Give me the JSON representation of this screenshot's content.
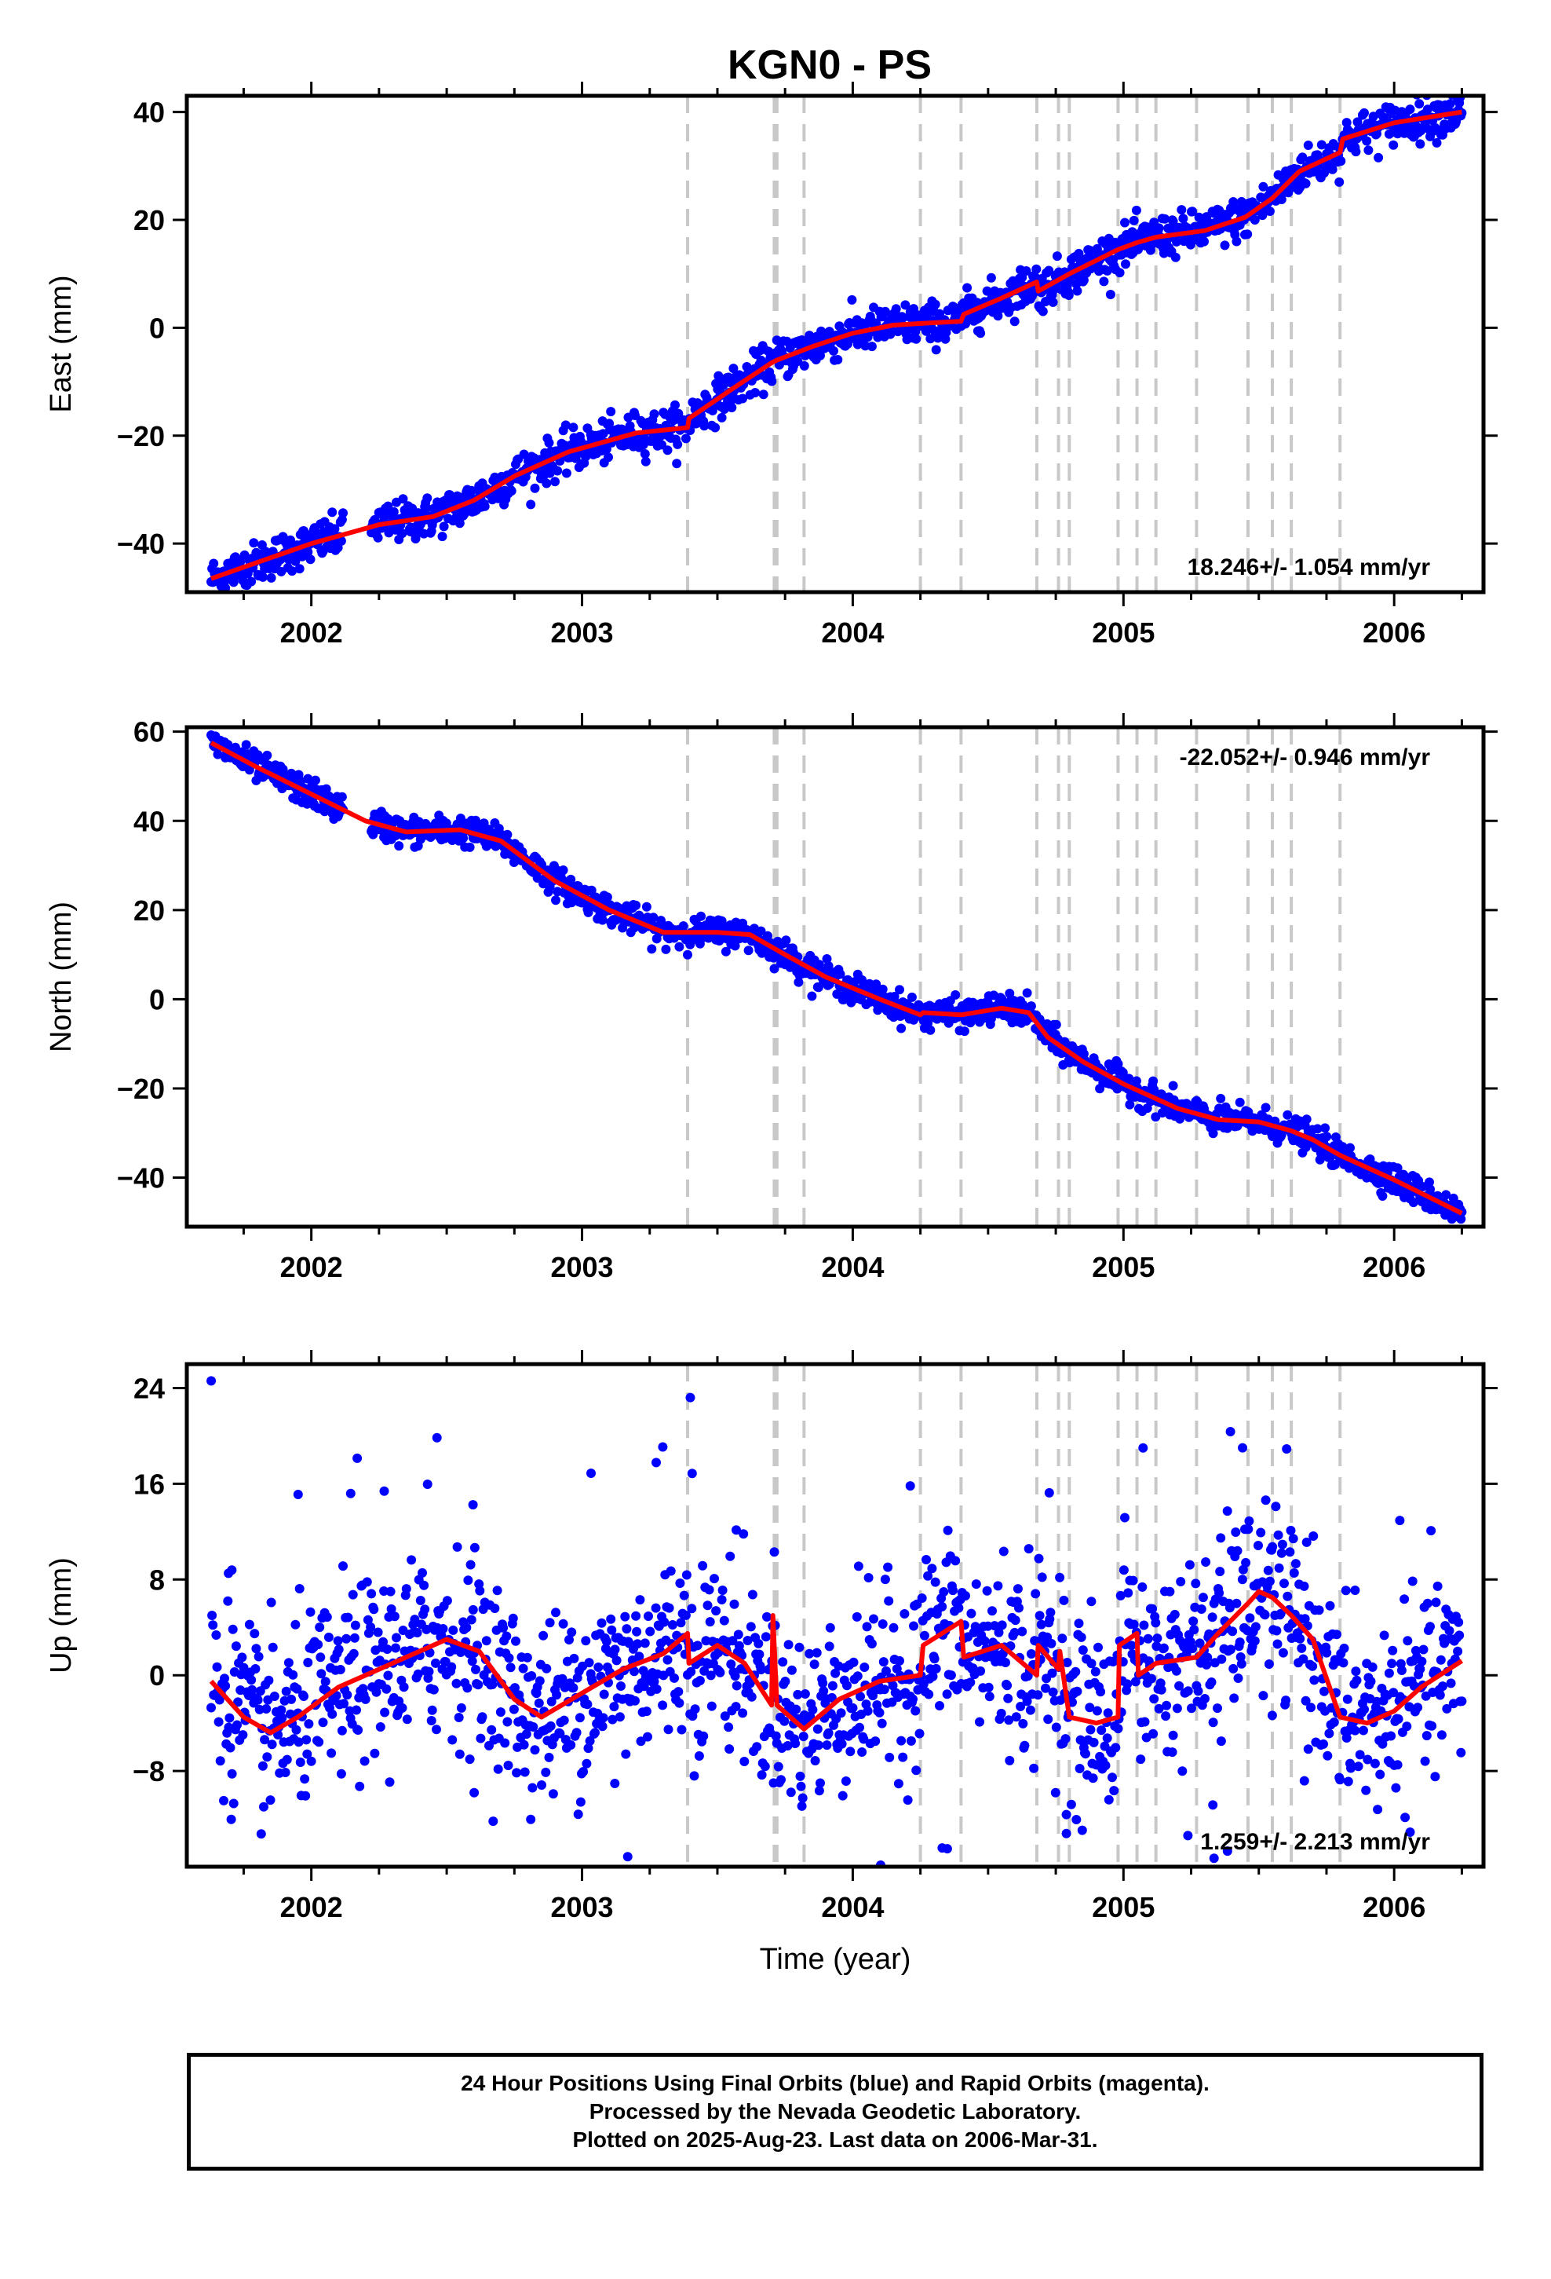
{
  "title": "KGN0 - PS",
  "colors": {
    "points": "#0000ff",
    "fit": "#ff0000",
    "breaks": "#c8c8c8",
    "frame": "#000000"
  },
  "chart_data": [
    {
      "type": "scatter",
      "id": "east",
      "xlabel": "",
      "ylabel": "East (mm)",
      "xlim": [
        2001.54,
        2006.33
      ],
      "ylim": [
        -49,
        43
      ],
      "yticks": [
        40,
        20,
        0,
        -20,
        -40
      ],
      "ytick_labels": [
        "40",
        "20",
        "0",
        "−20",
        "−40"
      ],
      "xticks": [
        2002,
        2003,
        2004,
        2005,
        2006
      ],
      "xtick_labels": [
        "2002",
        "2003",
        "2004",
        "2005",
        "2006"
      ],
      "rate_text": "18.246+/- 1.054 mm/yr",
      "rate_position": "bottom-right",
      "x_start": 2001.63,
      "x_end": 2006.25,
      "fit": [
        [
          2001.63,
          -46.5
        ],
        [
          2001.8,
          -43.5
        ],
        [
          2002.0,
          -40.0
        ],
        [
          2002.25,
          -36.5
        ],
        [
          2002.45,
          -35.0
        ],
        [
          2002.6,
          -32.0
        ],
        [
          2002.75,
          -27.5
        ],
        [
          2002.95,
          -23.0
        ],
        [
          2003.2,
          -19.5
        ],
        [
          2003.39,
          -18.5
        ],
        [
          2003.395,
          -16.8
        ],
        [
          2003.55,
          -11.5
        ],
        [
          2003.7,
          -6.5
        ],
        [
          2003.72,
          -6.0
        ],
        [
          2003.85,
          -3.5
        ],
        [
          2004.0,
          -1.0
        ],
        [
          2004.15,
          0.5
        ],
        [
          2004.25,
          0.8
        ],
        [
          2004.4,
          1.2
        ],
        [
          2004.41,
          2.5
        ],
        [
          2004.55,
          5.5
        ],
        [
          2004.68,
          8.5
        ],
        [
          2004.685,
          6.8
        ],
        [
          2004.8,
          10.0
        ],
        [
          2004.98,
          14.5
        ],
        [
          2005.05,
          15.8
        ],
        [
          2005.12,
          16.8
        ],
        [
          2005.3,
          18.0
        ],
        [
          2005.45,
          20.5
        ],
        [
          2005.55,
          24.0
        ],
        [
          2005.65,
          29.0
        ],
        [
          2005.8,
          32.5
        ],
        [
          2005.81,
          35.0
        ],
        [
          2006.0,
          38.0
        ],
        [
          2006.25,
          40.0
        ]
      ],
      "noise": 1.9,
      "outlier_count": 0,
      "breaks": [
        2003.39,
        2003.71,
        2003.72,
        2003.82,
        2004.25,
        2004.4,
        2004.68,
        2004.76,
        2004.8,
        2004.98,
        2005.05,
        2005.12,
        2005.27,
        2005.46,
        2005.55,
        2005.62,
        2005.8
      ]
    },
    {
      "type": "scatter",
      "id": "north",
      "xlabel": "",
      "ylabel": "North (mm)",
      "xlim": [
        2001.54,
        2006.33
      ],
      "ylim": [
        -51,
        61
      ],
      "yticks": [
        60,
        40,
        20,
        0,
        -20,
        -40
      ],
      "ytick_labels": [
        "60",
        "40",
        "20",
        "0",
        "−20",
        "−40"
      ],
      "xticks": [
        2002,
        2003,
        2004,
        2005,
        2006
      ],
      "xtick_labels": [
        "2002",
        "2003",
        "2004",
        "2005",
        "2006"
      ],
      "rate_text": "-22.052+/- 0.946 mm/yr",
      "rate_position": "top-right",
      "x_start": 2001.63,
      "x_end": 2006.25,
      "fit": [
        [
          2001.63,
          57.5
        ],
        [
          2001.8,
          52.0
        ],
        [
          2002.0,
          46.0
        ],
        [
          2002.2,
          40.0
        ],
        [
          2002.35,
          37.5
        ],
        [
          2002.55,
          38.0
        ],
        [
          2002.7,
          35.5
        ],
        [
          2002.9,
          26.5
        ],
        [
          2003.1,
          20.0
        ],
        [
          2003.3,
          15.0
        ],
        [
          2003.5,
          15.0
        ],
        [
          2003.62,
          14.5
        ],
        [
          2003.75,
          10.0
        ],
        [
          2003.9,
          5.0
        ],
        [
          2004.1,
          0.0
        ],
        [
          2004.25,
          -3.5
        ],
        [
          2004.26,
          -3.0
        ],
        [
          2004.4,
          -3.5
        ],
        [
          2004.55,
          -2.0
        ],
        [
          2004.65,
          -3.0
        ],
        [
          2004.72,
          -8.5
        ],
        [
          2004.85,
          -14.0
        ],
        [
          2005.0,
          -19.0
        ],
        [
          2005.2,
          -24.5
        ],
        [
          2005.35,
          -27.0
        ],
        [
          2005.5,
          -27.5
        ],
        [
          2005.62,
          -29.5
        ],
        [
          2005.7,
          -31.5
        ],
        [
          2005.8,
          -35.0
        ],
        [
          2006.0,
          -40.5
        ],
        [
          2006.25,
          -48.0
        ]
      ],
      "noise": 1.6,
      "outlier_count": 0,
      "breaks": [
        2003.39,
        2003.71,
        2003.72,
        2003.82,
        2004.25,
        2004.4,
        2004.68,
        2004.76,
        2004.8,
        2004.98,
        2005.05,
        2005.12,
        2005.27,
        2005.46,
        2005.55,
        2005.62,
        2005.8
      ]
    },
    {
      "type": "scatter",
      "id": "up",
      "xlabel": "Time (year)",
      "ylabel": "Up (mm)",
      "xlim": [
        2001.54,
        2006.33
      ],
      "ylim": [
        -16,
        26
      ],
      "yticks": [
        24,
        16,
        8,
        0,
        -8
      ],
      "ytick_labels": [
        "24",
        "16",
        "8",
        "0",
        "−8"
      ],
      "xticks": [
        2002,
        2003,
        2004,
        2005,
        2006
      ],
      "xtick_labels": [
        "2002",
        "2003",
        "2004",
        "2005",
        "2006"
      ],
      "rate_text": "1.259+/- 2.213 mm/yr",
      "rate_position": "bottom-right",
      "x_start": 2001.63,
      "x_end": 2006.25,
      "fit": [
        [
          2001.63,
          -0.5
        ],
        [
          2001.75,
          -3.5
        ],
        [
          2001.85,
          -4.8
        ],
        [
          2001.95,
          -3.5
        ],
        [
          2002.1,
          -1.0
        ],
        [
          2002.25,
          0.5
        ],
        [
          2002.35,
          1.5
        ],
        [
          2002.5,
          3.0
        ],
        [
          2002.62,
          2.0
        ],
        [
          2002.75,
          -2.0
        ],
        [
          2002.85,
          -3.5
        ],
        [
          2003.0,
          -1.5
        ],
        [
          2003.15,
          0.5
        ],
        [
          2003.3,
          1.8
        ],
        [
          2003.39,
          3.5
        ],
        [
          2003.395,
          1.0
        ],
        [
          2003.5,
          2.5
        ],
        [
          2003.6,
          1.0
        ],
        [
          2003.7,
          -2.5
        ],
        [
          2003.705,
          5.0
        ],
        [
          2003.72,
          -2.5
        ],
        [
          2003.82,
          -4.5
        ],
        [
          2003.95,
          -2.0
        ],
        [
          2004.1,
          -0.5
        ],
        [
          2004.25,
          0.0
        ],
        [
          2004.26,
          2.5
        ],
        [
          2004.4,
          4.5
        ],
        [
          2004.41,
          1.5
        ],
        [
          2004.55,
          2.5
        ],
        [
          2004.68,
          0.0
        ],
        [
          2004.685,
          2.5
        ],
        [
          2004.76,
          0.5
        ],
        [
          2004.765,
          2.0
        ],
        [
          2004.8,
          -3.5
        ],
        [
          2004.9,
          -4.0
        ],
        [
          2004.98,
          -3.5
        ],
        [
          2004.985,
          2.5
        ],
        [
          2005.05,
          3.5
        ],
        [
          2005.055,
          0.0
        ],
        [
          2005.12,
          1.0
        ],
        [
          2005.27,
          1.5
        ],
        [
          2005.35,
          3.5
        ],
        [
          2005.46,
          6.0
        ],
        [
          2005.5,
          7.0
        ],
        [
          2005.55,
          6.5
        ],
        [
          2005.62,
          5.0
        ],
        [
          2005.7,
          3.0
        ],
        [
          2005.8,
          -3.5
        ],
        [
          2005.9,
          -4.0
        ],
        [
          2006.0,
          -3.0
        ],
        [
          2006.1,
          -1.0
        ],
        [
          2006.25,
          1.2
        ]
      ],
      "noise": 3.8,
      "outlier_count": 40,
      "breaks": [
        2003.39,
        2003.71,
        2003.72,
        2003.82,
        2004.25,
        2004.4,
        2004.68,
        2004.76,
        2004.8,
        2004.98,
        2005.05,
        2005.12,
        2005.27,
        2005.46,
        2005.55,
        2005.62,
        2005.8
      ]
    }
  ],
  "footer": {
    "line1": "24 Hour Positions Using Final Orbits (blue) and Rapid Orbits (magenta).",
    "line2": "Processed by the Nevada Geodetic Laboratory.",
    "line3": "Plotted on 2025-Aug-23. Last data on 2006-Mar-31."
  }
}
